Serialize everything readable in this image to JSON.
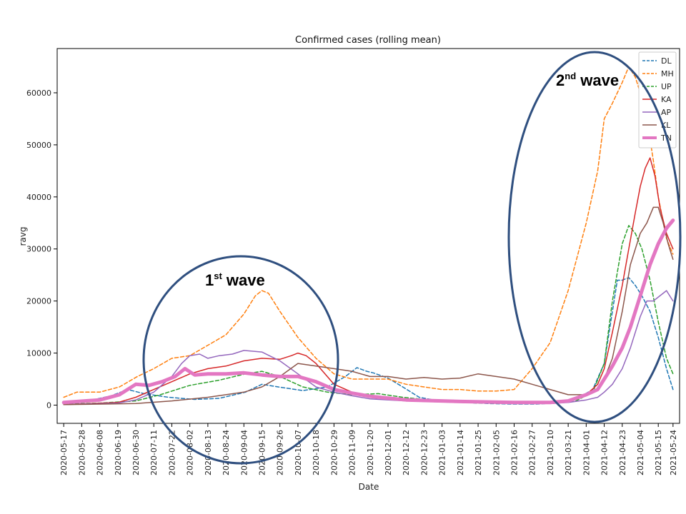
{
  "chart_data": {
    "type": "line",
    "title": "Confirmed cases (rolling mean)",
    "xlabel": "Date",
    "ylabel": "ravg",
    "ylim": [
      -3500,
      68500
    ],
    "yticks": [
      0,
      10000,
      20000,
      30000,
      40000,
      50000,
      60000
    ],
    "xlim": [
      "2020-05-13",
      "2021-05-28"
    ],
    "xtick_labels": [
      "2020-05-17",
      "2020-05-28",
      "2020-06-08",
      "2020-06-19",
      "2020-06-30",
      "2020-07-11",
      "2020-07-22",
      "2020-08-02",
      "2020-08-13",
      "2020-08-24",
      "2020-09-04",
      "2020-09-15",
      "2020-09-26",
      "2020-10-07",
      "2020-10-18",
      "2020-10-29",
      "2020-11-09",
      "2020-11-20",
      "2020-12-01",
      "2020-12-12",
      "2020-12-23",
      "2021-01-03",
      "2021-01-14",
      "2021-01-25",
      "2021-02-05",
      "2021-02-16",
      "2021-02-27",
      "2021-03-10",
      "2021-03-21",
      "2021-04-01",
      "2021-04-12",
      "2021-04-23",
      "2021-05-04",
      "2021-05-15",
      "2021-05-24"
    ],
    "legend_position": "top-right",
    "grid": false,
    "series": [
      {
        "name": "DL",
        "color": "#1f77b4",
        "dash": "dashed",
        "width": 1.5,
        "x": [
          "2020-05-17",
          "2020-06-01",
          "2020-06-15",
          "2020-06-25",
          "2020-07-05",
          "2020-07-20",
          "2020-08-05",
          "2020-08-20",
          "2020-09-05",
          "2020-09-15",
          "2020-09-25",
          "2020-10-10",
          "2020-10-25",
          "2020-11-05",
          "2020-11-12",
          "2020-11-18",
          "2020-11-22",
          "2020-12-01",
          "2020-12-10",
          "2020-12-20",
          "2021-01-01",
          "2021-01-15",
          "2021-02-01",
          "2021-02-15",
          "2021-03-01",
          "2021-03-15",
          "2021-03-25",
          "2021-04-05",
          "2021-04-12",
          "2021-04-17",
          "2021-04-20",
          "2021-04-23",
          "2021-04-27",
          "2021-05-01",
          "2021-05-05",
          "2021-05-10",
          "2021-05-15",
          "2021-05-20",
          "2021-05-24"
        ],
        "y": [
          500,
          800,
          1800,
          3000,
          2200,
          1500,
          1100,
          1300,
          2500,
          4000,
          3500,
          2800,
          3500,
          5500,
          7200,
          6500,
          6200,
          5200,
          3500,
          1500,
          800,
          500,
          300,
          200,
          200,
          400,
          1000,
          3000,
          8000,
          18000,
          24000,
          24000,
          24500,
          23000,
          21000,
          18000,
          13000,
          7000,
          3000
        ]
      },
      {
        "name": "MH",
        "color": "#ff7f0e",
        "dash": "dashed",
        "width": 1.5,
        "x": [
          "2020-05-17",
          "2020-05-25",
          "2020-06-08",
          "2020-06-20",
          "2020-07-01",
          "2020-07-11",
          "2020-07-22",
          "2020-08-02",
          "2020-08-13",
          "2020-08-24",
          "2020-09-04",
          "2020-09-11",
          "2020-09-15",
          "2020-09-19",
          "2020-09-26",
          "2020-10-07",
          "2020-10-18",
          "2020-10-29",
          "2020-11-09",
          "2020-11-20",
          "2020-12-01",
          "2020-12-12",
          "2020-12-23",
          "2021-01-03",
          "2021-01-14",
          "2021-01-25",
          "2021-02-05",
          "2021-02-16",
          "2021-02-27",
          "2021-03-10",
          "2021-03-21",
          "2021-04-01",
          "2021-04-08",
          "2021-04-12",
          "2021-04-17",
          "2021-04-23",
          "2021-04-27",
          "2021-05-01",
          "2021-05-04",
          "2021-05-08",
          "2021-05-12",
          "2021-05-15",
          "2021-05-20",
          "2021-05-24"
        ],
        "y": [
          1500,
          2500,
          2500,
          3500,
          5500,
          7000,
          9000,
          9500,
          11500,
          13500,
          17500,
          21000,
          22000,
          21500,
          18000,
          13000,
          9000,
          6000,
          5000,
          5000,
          5000,
          4000,
          3500,
          3000,
          3000,
          2700,
          2700,
          3000,
          7000,
          12000,
          22000,
          35000,
          45000,
          55000,
          58000,
          62000,
          65000,
          63000,
          60000,
          55000,
          47000,
          40000,
          32000,
          29000
        ]
      },
      {
        "name": "UP",
        "color": "#2ca02c",
        "dash": "dashed",
        "width": 1.5,
        "x": [
          "2020-05-17",
          "2020-06-08",
          "2020-06-30",
          "2020-07-15",
          "2020-08-02",
          "2020-08-20",
          "2020-09-05",
          "2020-09-15",
          "2020-09-26",
          "2020-10-10",
          "2020-10-25",
          "2020-11-09",
          "2020-11-25",
          "2020-12-10",
          "2021-01-01",
          "2021-01-25",
          "2021-02-16",
          "2021-03-10",
          "2021-03-25",
          "2021-04-05",
          "2021-04-12",
          "2021-04-17",
          "2021-04-23",
          "2021-04-27",
          "2021-05-01",
          "2021-05-05",
          "2021-05-10",
          "2021-05-15",
          "2021-05-20",
          "2021-05-24"
        ],
        "y": [
          200,
          400,
          800,
          2000,
          3800,
          4800,
          6000,
          6500,
          5500,
          3500,
          2500,
          2000,
          2200,
          1500,
          800,
          400,
          300,
          300,
          700,
          2500,
          8000,
          20000,
          31000,
          34500,
          33000,
          30000,
          24000,
          16000,
          9000,
          6000
        ]
      },
      {
        "name": "KA",
        "color": "#d62728",
        "dash": "solid",
        "width": 1.5,
        "x": [
          "2020-05-17",
          "2020-06-19",
          "2020-06-30",
          "2020-07-11",
          "2020-07-22",
          "2020-08-02",
          "2020-08-13",
          "2020-08-24",
          "2020-09-04",
          "2020-09-15",
          "2020-09-26",
          "2020-10-03",
          "2020-10-07",
          "2020-10-12",
          "2020-10-18",
          "2020-10-29",
          "2020-11-09",
          "2020-11-20",
          "2020-12-12",
          "2021-01-14",
          "2021-02-16",
          "2021-03-10",
          "2021-03-21",
          "2021-04-01",
          "2021-04-08",
          "2021-04-12",
          "2021-04-17",
          "2021-04-23",
          "2021-04-27",
          "2021-05-01",
          "2021-05-04",
          "2021-05-07",
          "2021-05-10",
          "2021-05-13",
          "2021-05-16",
          "2021-05-20",
          "2021-05-24"
        ],
        "y": [
          100,
          500,
          1500,
          3000,
          4500,
          6000,
          7000,
          7500,
          8500,
          9000,
          8800,
          9500,
          10000,
          9500,
          8000,
          4000,
          2500,
          1500,
          1000,
          600,
          400,
          500,
          1000,
          2000,
          4000,
          7000,
          14000,
          23000,
          30000,
          37000,
          42000,
          45500,
          47500,
          44000,
          38000,
          33000,
          30000
        ]
      },
      {
        "name": "AP",
        "color": "#9467bd",
        "dash": "solid",
        "width": 1.5,
        "x": [
          "2020-05-17",
          "2020-06-19",
          "2020-06-30",
          "2020-07-11",
          "2020-07-22",
          "2020-07-28",
          "2020-08-02",
          "2020-08-08",
          "2020-08-13",
          "2020-08-20",
          "2020-08-28",
          "2020-09-04",
          "2020-09-15",
          "2020-09-26",
          "2020-10-07",
          "2020-10-18",
          "2020-10-29",
          "2020-11-09",
          "2020-11-20",
          "2020-12-12",
          "2021-01-14",
          "2021-02-16",
          "2021-03-10",
          "2021-03-21",
          "2021-04-01",
          "2021-04-08",
          "2021-04-12",
          "2021-04-17",
          "2021-04-23",
          "2021-04-28",
          "2021-05-04",
          "2021-05-08",
          "2021-05-12",
          "2021-05-16",
          "2021-05-20",
          "2021-05-24"
        ],
        "y": [
          100,
          400,
          1000,
          2500,
          5500,
          8000,
          9500,
          9800,
          9000,
          9500,
          9800,
          10500,
          10200,
          8500,
          6000,
          3500,
          2500,
          1800,
          1200,
          800,
          500,
          300,
          300,
          500,
          1000,
          1500,
          2500,
          4000,
          7000,
          11000,
          17000,
          20000,
          20000,
          21000,
          22000,
          20000
        ]
      },
      {
        "name": "KL",
        "color": "#8c564b",
        "dash": "solid",
        "width": 1.5,
        "x": [
          "2020-05-17",
          "2020-06-30",
          "2020-07-22",
          "2020-08-13",
          "2020-08-24",
          "2020-09-04",
          "2020-09-15",
          "2020-09-26",
          "2020-10-07",
          "2020-10-18",
          "2020-10-29",
          "2020-11-09",
          "2020-11-20",
          "2020-12-01",
          "2020-12-12",
          "2020-12-23",
          "2021-01-03",
          "2021-01-14",
          "2021-01-25",
          "2021-02-05",
          "2021-02-16",
          "2021-02-27",
          "2021-03-10",
          "2021-03-21",
          "2021-04-01",
          "2021-04-08",
          "2021-04-12",
          "2021-04-17",
          "2021-04-23",
          "2021-04-28",
          "2021-05-04",
          "2021-05-08",
          "2021-05-12",
          "2021-05-15",
          "2021-05-18",
          "2021-05-21",
          "2021-05-24"
        ],
        "y": [
          100,
          300,
          800,
          1500,
          2000,
          2500,
          3500,
          5500,
          8000,
          7500,
          7000,
          6500,
          5500,
          5500,
          5000,
          5300,
          5000,
          5200,
          6000,
          5500,
          5000,
          4000,
          3000,
          2000,
          2000,
          3000,
          5000,
          9000,
          18000,
          27000,
          33000,
          35000,
          38000,
          38000,
          35000,
          31000,
          28000
        ]
      },
      {
        "name": "TN",
        "color": "#e377c2",
        "dash": "solid",
        "width": 5,
        "x": [
          "2020-05-17",
          "2020-06-08",
          "2020-06-20",
          "2020-06-30",
          "2020-07-08",
          "2020-07-16",
          "2020-07-24",
          "2020-07-30",
          "2020-08-05",
          "2020-08-13",
          "2020-08-24",
          "2020-09-04",
          "2020-09-15",
          "2020-09-26",
          "2020-10-07",
          "2020-10-18",
          "2020-10-29",
          "2020-11-09",
          "2020-11-20",
          "2020-12-12",
          "2021-01-14",
          "2021-02-16",
          "2021-03-10",
          "2021-03-21",
          "2021-04-01",
          "2021-04-08",
          "2021-04-12",
          "2021-04-17",
          "2021-04-23",
          "2021-04-28",
          "2021-05-04",
          "2021-05-10",
          "2021-05-15",
          "2021-05-20",
          "2021-05-24"
        ],
        "y": [
          500,
          1000,
          2000,
          4000,
          3800,
          4500,
          5500,
          7000,
          5800,
          6000,
          6000,
          6200,
          5800,
          5500,
          5500,
          4500,
          3000,
          2300,
          1700,
          1000,
          700,
          500,
          500,
          800,
          2000,
          3000,
          5000,
          7500,
          11000,
          15000,
          21000,
          27000,
          31000,
          34000,
          35500
        ]
      }
    ],
    "annotations": [
      {
        "text": "1",
        "sup": "st",
        "rest": " wave"
      },
      {
        "text": "2",
        "sup": "nd",
        "rest": " wave"
      }
    ]
  }
}
